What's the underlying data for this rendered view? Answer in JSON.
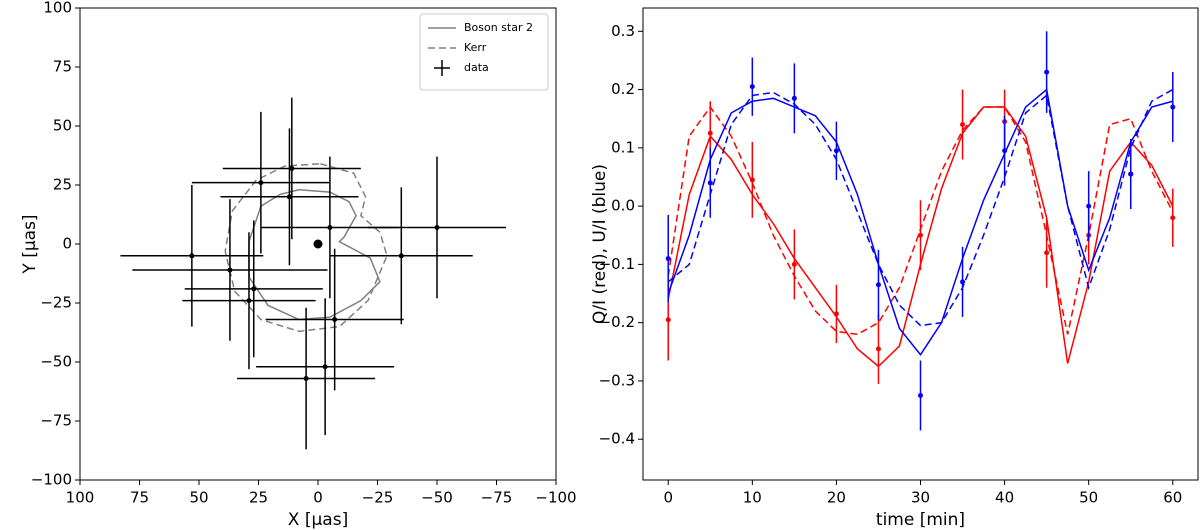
{
  "chart_data": [
    {
      "type": "scatter",
      "xlabel": "X [μas]",
      "ylabel": "Y [μas]",
      "xlim": [
        100,
        -100
      ],
      "ylim": [
        -100,
        100
      ],
      "xticks": [
        100,
        75,
        50,
        25,
        0,
        {
          "value": -25,
          "label": "−25"
        },
        {
          "value": -50,
          "label": "−50"
        },
        {
          "value": -75,
          "label": "−75"
        },
        {
          "value": -100,
          "label": "−100"
        }
      ],
      "yticks": [
        {
          "value": -100,
          "label": "−100"
        },
        {
          "value": -75,
          "label": "−75"
        },
        {
          "value": -50,
          "label": "−50"
        },
        {
          "value": -25,
          "label": "−25"
        },
        0,
        25,
        50,
        75,
        100
      ],
      "legend": "upper right",
      "center": {
        "x": 0,
        "y": 0,
        "color": "#000000"
      },
      "series": [
        {
          "name": "Boson star 2",
          "kind": "curve",
          "color": "#808080",
          "style": "solid",
          "x": [
            8,
            -5,
            -13,
            -16,
            -11,
            -9,
            -22,
            -26,
            -18,
            -5,
            8,
            21,
            29,
            29,
            24,
            16
          ],
          "values": [
            23,
            22,
            18,
            12,
            3,
            1,
            -6,
            -16,
            -24,
            -31,
            -32,
            -26,
            -14,
            1,
            16,
            21
          ]
        },
        {
          "name": "Kerr",
          "kind": "curve",
          "color": "#808080",
          "style": "dashed",
          "x": [
            -1,
            -15,
            -20,
            -18,
            -26,
            -29,
            -21,
            -9,
            8,
            24,
            35,
            39,
            36,
            26,
            14
          ],
          "values": [
            34,
            30,
            20,
            12,
            5,
            -5,
            -24,
            -35,
            -37,
            -32,
            -20,
            -3,
            14,
            27,
            33
          ]
        },
        {
          "name": "data",
          "kind": "errorbar",
          "color": "#000000",
          "x": [
            11,
            24,
            12,
            -5,
            -50,
            -35,
            53,
            37,
            27,
            29,
            -7,
            -3,
            5
          ],
          "values": [
            32,
            26,
            20,
            7,
            7,
            -5,
            -5,
            -11,
            -19,
            -24,
            -32,
            -52,
            -57
          ],
          "xerr": [
            29,
            29,
            29,
            29,
            29,
            30,
            30,
            41,
            29,
            28,
            29,
            29,
            29
          ],
          "yerr": [
            30,
            30,
            29,
            30,
            30,
            29,
            30,
            30,
            29,
            29,
            30,
            29,
            30
          ]
        }
      ]
    },
    {
      "type": "line",
      "xlabel": "time [min]",
      "ylabel": "Q/I (red), U/I (blue)",
      "xlim": [
        -3,
        63
      ],
      "ylim": [
        -0.47,
        0.34
      ],
      "xticks": [
        0,
        10,
        20,
        30,
        40,
        50,
        60
      ],
      "yticks": [
        {
          "value": -0.4,
          "label": "−0.4"
        },
        {
          "value": -0.3,
          "label": "−0.3"
        },
        {
          "value": -0.2,
          "label": "−0.2"
        },
        {
          "value": -0.1,
          "label": "−0.1"
        },
        {
          "value": 0,
          "label": "0.0"
        },
        0.1,
        0.2,
        0.3
      ],
      "series": [
        {
          "kind": "curve",
          "color": "#ff0000",
          "style": "solid",
          "x": [
            0,
            2.5,
            5,
            7.5,
            10,
            12.5,
            15,
            17.5,
            20,
            22.5,
            25,
            27.5,
            30,
            32.5,
            35,
            37.5,
            40,
            42.5,
            45,
            47.5,
            50,
            52.5,
            55,
            57.5,
            60
          ],
          "values": [
            -0.16,
            0.02,
            0.12,
            0.08,
            0.02,
            -0.03,
            -0.09,
            -0.14,
            -0.19,
            -0.245,
            -0.275,
            -0.24,
            -0.1,
            0.03,
            0.125,
            0.17,
            0.17,
            0.12,
            -0.02,
            -0.27,
            -0.13,
            0.06,
            0.11,
            0.07,
            0.0
          ]
        },
        {
          "kind": "curve",
          "color": "#ff0000",
          "style": "dashed",
          "x": [
            0,
            2.5,
            5,
            7.5,
            10,
            12.5,
            15,
            17.5,
            20,
            22.5,
            25,
            27.5,
            30,
            32.5,
            35,
            37.5,
            40,
            42.5,
            45,
            47.5,
            50,
            52.5,
            55,
            57.5,
            60
          ],
          "values": [
            -0.12,
            0.12,
            0.17,
            0.12,
            0.04,
            -0.05,
            -0.12,
            -0.18,
            -0.215,
            -0.22,
            -0.2,
            -0.14,
            -0.04,
            0.06,
            0.13,
            0.17,
            0.17,
            0.11,
            -0.05,
            -0.22,
            -0.05,
            0.14,
            0.15,
            0.06,
            -0.01
          ]
        },
        {
          "kind": "curve",
          "color": "#0000ff",
          "style": "solid",
          "x": [
            0,
            2.5,
            5,
            7.5,
            10,
            12.5,
            15,
            17.5,
            20,
            22.5,
            25,
            27.5,
            30,
            32.5,
            35,
            37.5,
            40,
            42.5,
            45,
            47.5,
            50,
            52.5,
            55,
            57.5,
            60
          ],
          "values": [
            -0.15,
            -0.05,
            0.08,
            0.16,
            0.18,
            0.185,
            0.17,
            0.155,
            0.11,
            0.02,
            -0.1,
            -0.21,
            -0.255,
            -0.2,
            -0.09,
            0.01,
            0.09,
            0.17,
            0.2,
            0.0,
            -0.11,
            -0.02,
            0.11,
            0.17,
            0.18
          ]
        },
        {
          "kind": "curve",
          "color": "#0000ff",
          "style": "dashed",
          "x": [
            0,
            2.5,
            5,
            7.5,
            10,
            12.5,
            15,
            17.5,
            20,
            22.5,
            25,
            27.5,
            30,
            32.5,
            35,
            37.5,
            40,
            42.5,
            45,
            47.5,
            50,
            52.5,
            55,
            57.5,
            60
          ],
          "values": [
            -0.13,
            -0.1,
            0.02,
            0.14,
            0.19,
            0.195,
            0.175,
            0.14,
            0.08,
            -0.01,
            -0.1,
            -0.17,
            -0.205,
            -0.2,
            -0.14,
            -0.05,
            0.05,
            0.16,
            0.19,
            0.0,
            -0.14,
            -0.04,
            0.1,
            0.18,
            0.2
          ]
        },
        {
          "kind": "errorbar",
          "color": "#ff0000",
          "x": [
            0,
            5,
            10,
            15,
            20,
            25,
            30,
            35,
            40,
            45,
            50,
            55,
            60
          ],
          "values": [
            -0.195,
            0.125,
            0.045,
            -0.1,
            -0.185,
            -0.245,
            -0.05,
            0.14,
            0.145,
            -0.08,
            -0.05,
            0.055,
            -0.02
          ],
          "yerr": [
            0.07,
            0.055,
            0.065,
            0.06,
            0.05,
            0.06,
            0.06,
            0.06,
            0.055,
            0.06,
            0.05,
            0.06,
            0.05
          ]
        },
        {
          "kind": "errorbar",
          "color": "#0000ff",
          "x": [
            0,
            5,
            10,
            15,
            20,
            25,
            30,
            35,
            40,
            45,
            50,
            55,
            60
          ],
          "values": [
            -0.09,
            0.04,
            0.205,
            0.185,
            0.095,
            -0.135,
            -0.325,
            -0.13,
            0.095,
            0.23,
            0.0,
            0.055,
            0.17
          ],
          "yerr": [
            0.075,
            0.06,
            0.05,
            0.06,
            0.05,
            0.06,
            0.06,
            0.06,
            0.06,
            0.07,
            0.06,
            0.06,
            0.06
          ]
        }
      ]
    }
  ]
}
